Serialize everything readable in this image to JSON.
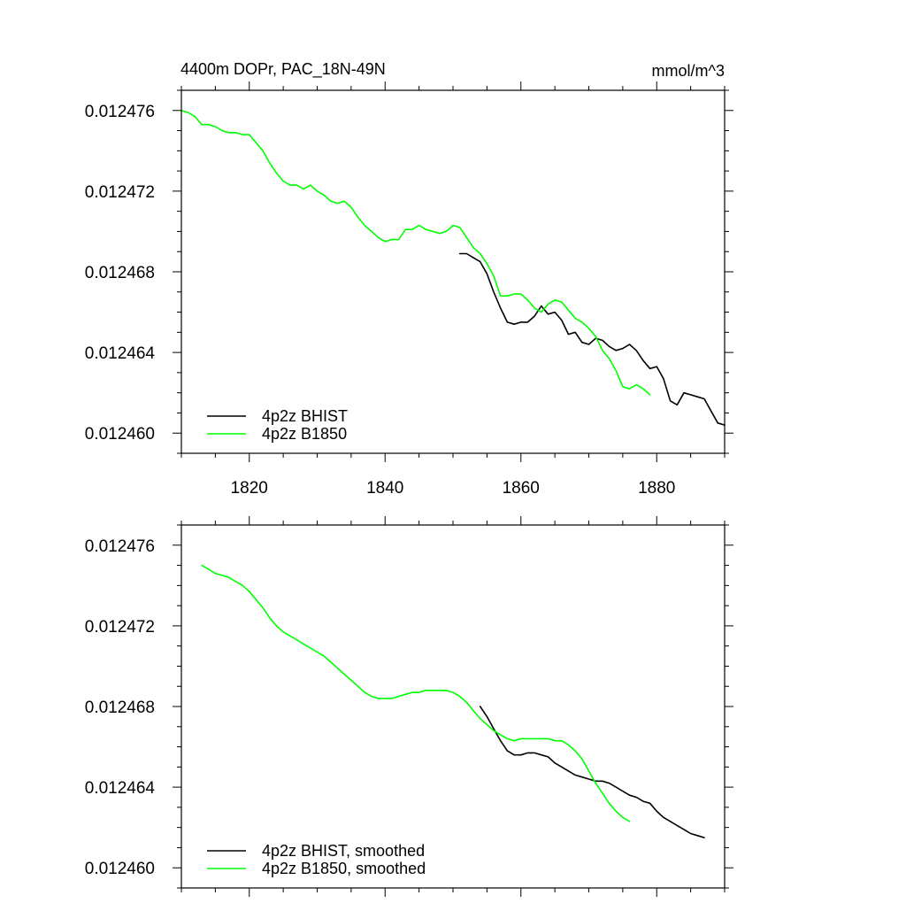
{
  "chart_data": [
    {
      "type": "line",
      "title_left": "4400m DOPr, PAC_18N-49N",
      "title_right": "mmol/m^3",
      "xlabel": "",
      "ylabel": "",
      "xlim": [
        1810,
        1890
      ],
      "ylim": [
        0.012459,
        0.012477
      ],
      "xticks": [
        1820,
        1840,
        1860,
        1880
      ],
      "xtick_labels": [
        "1820",
        "1840",
        "1860",
        "1880"
      ],
      "yticks": [
        0.01246,
        0.012464,
        0.012468,
        0.012472,
        0.012476
      ],
      "ytick_labels": [
        "0.012460",
        "0.012464",
        "0.012468",
        "0.012472",
        "0.012476"
      ],
      "grid": false,
      "legend_position": "bottom-left",
      "series": [
        {
          "name": "4p2z BHIST",
          "color": "#000000",
          "x": [
            1851,
            1852,
            1853,
            1854,
            1855,
            1856,
            1857,
            1858,
            1859,
            1860,
            1861,
            1862,
            1863,
            1864,
            1865,
            1866,
            1867,
            1868,
            1869,
            1870,
            1871,
            1872,
            1873,
            1874,
            1875,
            1876,
            1877,
            1878,
            1879,
            1880,
            1881,
            1882,
            1883,
            1884,
            1885,
            1886,
            1887,
            1888,
            1889,
            1890
          ],
          "y": [
            0.0124689,
            0.0124689,
            0.0124687,
            0.0124685,
            0.0124679,
            0.012467,
            0.0124662,
            0.0124655,
            0.0124654,
            0.0124655,
            0.0124655,
            0.0124658,
            0.0124663,
            0.0124659,
            0.012466,
            0.0124656,
            0.0124649,
            0.012465,
            0.0124645,
            0.0124644,
            0.0124647,
            0.0124646,
            0.0124643,
            0.0124641,
            0.0124642,
            0.0124644,
            0.0124641,
            0.0124636,
            0.0124632,
            0.0124633,
            0.0124627,
            0.0124616,
            0.0124614,
            0.012462,
            0.0124619,
            0.0124618,
            0.0124617,
            0.0124611,
            0.0124605,
            0.0124604
          ]
        },
        {
          "name": "4p2z B1850",
          "color": "#00ff00",
          "x": [
            1810,
            1811,
            1812,
            1813,
            1814,
            1815,
            1816,
            1817,
            1818,
            1819,
            1820,
            1821,
            1822,
            1823,
            1824,
            1825,
            1826,
            1827,
            1828,
            1829,
            1830,
            1831,
            1832,
            1833,
            1834,
            1835,
            1836,
            1837,
            1838,
            1839,
            1840,
            1841,
            1842,
            1843,
            1844,
            1845,
            1846,
            1847,
            1848,
            1849,
            1850,
            1851,
            1852,
            1853,
            1854,
            1855,
            1856,
            1857,
            1858,
            1859,
            1860,
            1861,
            1862,
            1863,
            1864,
            1865,
            1866,
            1867,
            1868,
            1869,
            1870,
            1871,
            1872,
            1873,
            1874,
            1875,
            1876,
            1877,
            1878,
            1879
          ],
          "y": [
            0.012476,
            0.0124759,
            0.0124757,
            0.0124753,
            0.0124753,
            0.0124752,
            0.012475,
            0.0124749,
            0.0124749,
            0.0124748,
            0.0124748,
            0.0124744,
            0.012474,
            0.0124734,
            0.0124729,
            0.0124725,
            0.0124723,
            0.0124723,
            0.0124721,
            0.0124723,
            0.012472,
            0.0124718,
            0.0124715,
            0.0124714,
            0.0124715,
            0.0124712,
            0.0124707,
            0.0124703,
            0.01247,
            0.0124697,
            0.0124695,
            0.0124696,
            0.0124696,
            0.0124701,
            0.0124701,
            0.0124703,
            0.0124701,
            0.01247,
            0.0124699,
            0.01247,
            0.0124703,
            0.0124702,
            0.0124697,
            0.0124692,
            0.0124689,
            0.0124684,
            0.0124678,
            0.0124668,
            0.0124668,
            0.0124669,
            0.0124669,
            0.0124666,
            0.0124662,
            0.012466,
            0.0124664,
            0.0124666,
            0.0124665,
            0.0124661,
            0.0124657,
            0.0124655,
            0.0124652,
            0.0124648,
            0.0124641,
            0.0124637,
            0.0124631,
            0.0124623,
            0.0124622,
            0.0124624,
            0.0124622,
            0.0124619
          ]
        }
      ]
    },
    {
      "type": "line",
      "xlabel": "",
      "ylabel": "",
      "xlim": [
        1810,
        1890
      ],
      "ylim": [
        0.012459,
        0.012477
      ],
      "yticks": [
        0.01246,
        0.012464,
        0.012468,
        0.012472,
        0.012476
      ],
      "ytick_labels": [
        "0.012460",
        "0.012464",
        "0.012468",
        "0.012472",
        "0.012476"
      ],
      "grid": false,
      "legend_position": "bottom-left",
      "series": [
        {
          "name": "4p2z BHIST, smoothed",
          "color": "#000000",
          "x": [
            1854,
            1855,
            1856,
            1857,
            1858,
            1859,
            1860,
            1861,
            1862,
            1863,
            1864,
            1865,
            1866,
            1867,
            1868,
            1869,
            1870,
            1871,
            1872,
            1873,
            1874,
            1875,
            1876,
            1877,
            1878,
            1879,
            1880,
            1881,
            1882,
            1883,
            1884,
            1885,
            1886,
            1887
          ],
          "y": [
            0.012468,
            0.0124675,
            0.0124669,
            0.0124663,
            0.0124658,
            0.0124656,
            0.0124656,
            0.0124657,
            0.0124657,
            0.0124656,
            0.0124655,
            0.0124652,
            0.012465,
            0.0124648,
            0.0124646,
            0.0124645,
            0.0124644,
            0.0124643,
            0.0124643,
            0.0124642,
            0.012464,
            0.0124638,
            0.0124636,
            0.0124635,
            0.0124633,
            0.0124632,
            0.0124628,
            0.0124625,
            0.0124623,
            0.0124621,
            0.0124619,
            0.0124617,
            0.0124616,
            0.0124615
          ]
        },
        {
          "name": "4p2z B1850, smoothed",
          "color": "#00ff00",
          "x": [
            1813,
            1814,
            1815,
            1816,
            1817,
            1818,
            1819,
            1820,
            1821,
            1822,
            1823,
            1824,
            1825,
            1826,
            1827,
            1828,
            1829,
            1830,
            1831,
            1832,
            1833,
            1834,
            1835,
            1836,
            1837,
            1838,
            1839,
            1840,
            1841,
            1842,
            1843,
            1844,
            1845,
            1846,
            1847,
            1848,
            1849,
            1850,
            1851,
            1852,
            1853,
            1854,
            1855,
            1856,
            1857,
            1858,
            1859,
            1860,
            1861,
            1862,
            1863,
            1864,
            1865,
            1866,
            1867,
            1868,
            1869,
            1870,
            1871,
            1872,
            1873,
            1874,
            1875,
            1876
          ],
          "y": [
            0.012475,
            0.0124748,
            0.0124746,
            0.0124745,
            0.0124744,
            0.0124742,
            0.012474,
            0.0124737,
            0.0124733,
            0.0124729,
            0.0124724,
            0.012472,
            0.0124717,
            0.0124715,
            0.0124713,
            0.0124711,
            0.0124709,
            0.0124707,
            0.0124705,
            0.0124702,
            0.0124699,
            0.0124696,
            0.0124693,
            0.012469,
            0.0124687,
            0.0124685,
            0.0124684,
            0.0124684,
            0.0124684,
            0.0124685,
            0.0124686,
            0.0124687,
            0.0124687,
            0.0124688,
            0.0124688,
            0.0124688,
            0.0124688,
            0.0124687,
            0.0124685,
            0.0124682,
            0.0124678,
            0.0124674,
            0.0124671,
            0.0124668,
            0.0124666,
            0.0124664,
            0.0124663,
            0.0124664,
            0.0124664,
            0.0124664,
            0.0124664,
            0.0124664,
            0.0124663,
            0.0124663,
            0.0124661,
            0.0124658,
            0.0124654,
            0.0124648,
            0.0124642,
            0.0124637,
            0.0124632,
            0.0124628,
            0.0124625,
            0.0124623
          ]
        }
      ]
    }
  ]
}
